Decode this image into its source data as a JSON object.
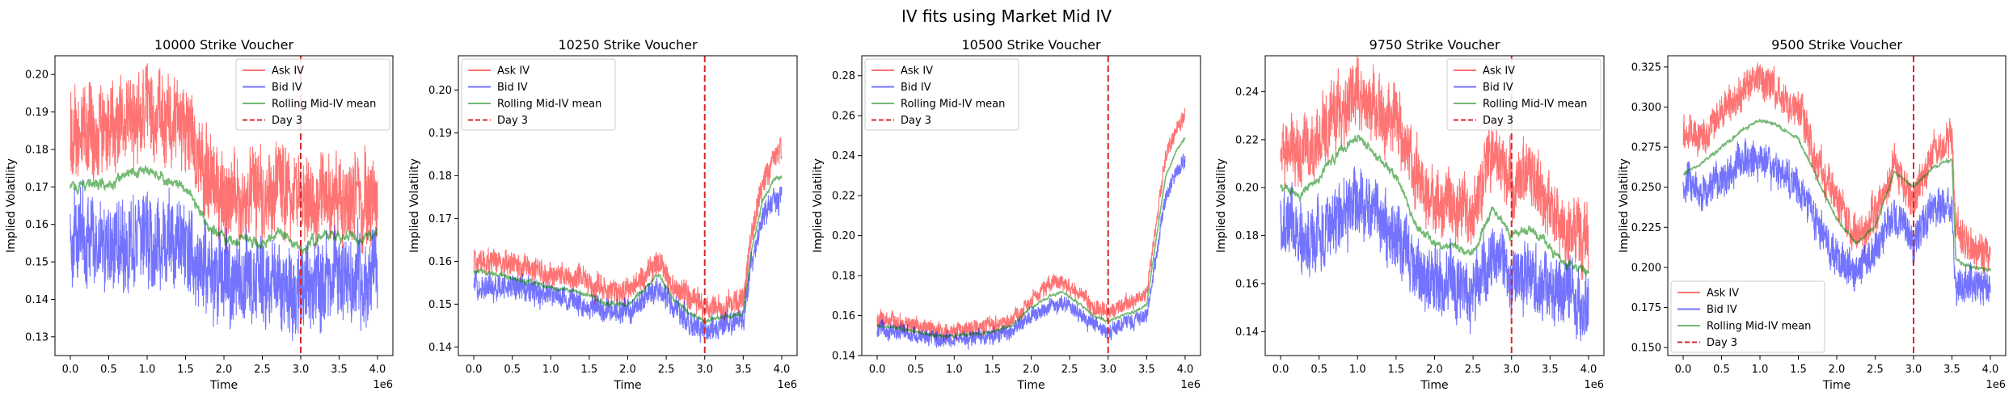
{
  "suptitle": "IV fits using Market Mid IV",
  "colors": {
    "ask": "#ff0000",
    "bid": "#0000ff",
    "mid": "#008000",
    "day": "#d62728"
  },
  "legend_labels": [
    "Ask IV",
    "Bid IV",
    "Rolling Mid-IV mean",
    "Day 3"
  ],
  "chart_data": [
    {
      "type": "line",
      "title": "10000 Strike Voucher",
      "xlabel": "Time",
      "ylabel": "Implied Volatility",
      "x_offset_label": "1e6",
      "xlim": [
        -0.2,
        4.2
      ],
      "ylim": [
        0.125,
        0.205
      ],
      "xticks": [
        "0.0",
        "0.5",
        "1.0",
        "1.5",
        "2.0",
        "2.5",
        "3.0",
        "3.5",
        "4.0"
      ],
      "yticks": [
        "0.13",
        "0.14",
        "0.15",
        "0.16",
        "0.17",
        "0.18",
        "0.19",
        "0.20"
      ],
      "legend_position": "upper right",
      "vline_x": 3.0,
      "grid": false,
      "x": [
        0.0,
        0.25,
        0.5,
        0.75,
        1.0,
        1.25,
        1.5,
        1.75,
        2.0,
        2.25,
        2.5,
        2.75,
        3.0,
        3.25,
        3.5,
        3.75,
        4.0
      ],
      "series": [
        {
          "name": "Ask IV",
          "values": [
            0.183,
            0.186,
            0.185,
            0.189,
            0.19,
            0.188,
            0.186,
            0.172,
            0.168,
            0.168,
            0.167,
            0.171,
            0.163,
            0.167,
            0.167,
            0.166,
            0.166
          ]
        },
        {
          "name": "Bid IV",
          "values": [
            0.158,
            0.156,
            0.155,
            0.155,
            0.156,
            0.155,
            0.154,
            0.148,
            0.145,
            0.145,
            0.144,
            0.143,
            0.142,
            0.146,
            0.147,
            0.146,
            0.15
          ]
        },
        {
          "name": "Rolling Mid-IV mean",
          "values": [
            0.17,
            0.171,
            0.17,
            0.173,
            0.175,
            0.172,
            0.17,
            0.161,
            0.156,
            0.156,
            0.155,
            0.158,
            0.153,
            0.157,
            0.157,
            0.156,
            0.158
          ]
        }
      ]
    },
    {
      "type": "line",
      "title": "10250 Strike Voucher",
      "xlabel": "Time",
      "ylabel": "Implied Volatility",
      "x_offset_label": "1e6",
      "xlim": [
        -0.2,
        4.2
      ],
      "ylim": [
        0.138,
        0.208
      ],
      "xticks": [
        "0.0",
        "0.5",
        "1.0",
        "1.5",
        "2.0",
        "2.5",
        "3.0",
        "3.5",
        "4.0"
      ],
      "yticks": [
        "0.14",
        "0.15",
        "0.16",
        "0.17",
        "0.18",
        "0.19",
        "0.20"
      ],
      "legend_position": "upper left",
      "vline_x": 3.0,
      "grid": false,
      "x": [
        0.0,
        0.25,
        0.5,
        0.75,
        1.0,
        1.25,
        1.5,
        1.75,
        2.0,
        2.25,
        2.4,
        2.6,
        2.8,
        3.0,
        3.25,
        3.5,
        3.6,
        3.75,
        3.9,
        4.0
      ],
      "series": [
        {
          "name": "Ask IV",
          "values": [
            0.161,
            0.16,
            0.159,
            0.158,
            0.157,
            0.156,
            0.155,
            0.153,
            0.153,
            0.157,
            0.16,
            0.154,
            0.151,
            0.149,
            0.149,
            0.151,
            0.166,
            0.178,
            0.184,
            0.186
          ]
        },
        {
          "name": "Bid IV",
          "values": [
            0.155,
            0.154,
            0.154,
            0.153,
            0.152,
            0.151,
            0.15,
            0.148,
            0.148,
            0.152,
            0.154,
            0.149,
            0.146,
            0.144,
            0.145,
            0.146,
            0.159,
            0.17,
            0.174,
            0.175
          ]
        },
        {
          "name": "Rolling Mid-IV mean",
          "values": [
            0.158,
            0.157,
            0.156,
            0.155,
            0.154,
            0.153,
            0.152,
            0.15,
            0.15,
            0.154,
            0.157,
            0.151,
            0.148,
            0.146,
            0.147,
            0.148,
            0.162,
            0.174,
            0.179,
            0.18
          ]
        }
      ]
    },
    {
      "type": "line",
      "title": "10500 Strike Voucher",
      "xlabel": "Time",
      "ylabel": "Implied Volatility",
      "x_offset_label": "1e6",
      "xlim": [
        -0.2,
        4.2
      ],
      "ylim": [
        0.14,
        0.29
      ],
      "xticks": [
        "0.0",
        "0.5",
        "1.0",
        "1.5",
        "2.0",
        "2.5",
        "3.0",
        "3.5",
        "4.0"
      ],
      "yticks": [
        "0.14",
        "0.16",
        "0.18",
        "0.20",
        "0.22",
        "0.24",
        "0.26",
        "0.28"
      ],
      "legend_position": "upper left",
      "vline_x": 3.0,
      "grid": false,
      "x": [
        0.0,
        0.25,
        0.5,
        0.75,
        1.0,
        1.25,
        1.5,
        1.75,
        2.0,
        2.25,
        2.4,
        2.6,
        2.8,
        3.0,
        3.25,
        3.5,
        3.6,
        3.75,
        3.9,
        4.0
      ],
      "series": [
        {
          "name": "Ask IV",
          "values": [
            0.158,
            0.157,
            0.155,
            0.153,
            0.152,
            0.154,
            0.155,
            0.158,
            0.168,
            0.175,
            0.177,
            0.172,
            0.164,
            0.162,
            0.166,
            0.17,
            0.2,
            0.24,
            0.255,
            0.26
          ]
        },
        {
          "name": "Bid IV",
          "values": [
            0.153,
            0.152,
            0.15,
            0.148,
            0.148,
            0.149,
            0.15,
            0.152,
            0.16,
            0.164,
            0.166,
            0.162,
            0.155,
            0.152,
            0.156,
            0.16,
            0.185,
            0.22,
            0.232,
            0.238
          ]
        },
        {
          "name": "Rolling Mid-IV mean",
          "values": [
            0.155,
            0.154,
            0.152,
            0.15,
            0.15,
            0.151,
            0.152,
            0.155,
            0.164,
            0.17,
            0.172,
            0.167,
            0.16,
            0.157,
            0.161,
            0.165,
            0.192,
            0.23,
            0.243,
            0.249
          ]
        }
      ]
    },
    {
      "type": "line",
      "title": "9750 Strike Voucher",
      "xlabel": "Time",
      "ylabel": "Implied Volatility",
      "x_offset_label": "1e6",
      "xlim": [
        -0.2,
        4.2
      ],
      "ylim": [
        0.13,
        0.255
      ],
      "xticks": [
        "0.0",
        "0.5",
        "1.0",
        "1.5",
        "2.0",
        "2.5",
        "3.0",
        "3.5",
        "4.0"
      ],
      "yticks": [
        "0.14",
        "0.16",
        "0.18",
        "0.20",
        "0.22",
        "0.24"
      ],
      "legend_position": "upper right",
      "vline_x": 3.0,
      "grid": false,
      "x": [
        0.0,
        0.25,
        0.5,
        0.75,
        1.0,
        1.25,
        1.5,
        1.75,
        2.0,
        2.25,
        2.5,
        2.75,
        3.0,
        3.25,
        3.5,
        3.75,
        4.0
      ],
      "series": [
        {
          "name": "Ask IV",
          "values": [
            0.215,
            0.212,
            0.222,
            0.232,
            0.24,
            0.232,
            0.228,
            0.205,
            0.195,
            0.192,
            0.19,
            0.215,
            0.2,
            0.205,
            0.192,
            0.18,
            0.178
          ]
        },
        {
          "name": "Bid IV",
          "values": [
            0.185,
            0.18,
            0.18,
            0.188,
            0.195,
            0.19,
            0.18,
            0.165,
            0.158,
            0.16,
            0.155,
            0.17,
            0.16,
            0.162,
            0.158,
            0.155,
            0.152
          ]
        },
        {
          "name": "Rolling Mid-IV mean",
          "values": [
            0.2,
            0.196,
            0.205,
            0.215,
            0.222,
            0.213,
            0.205,
            0.185,
            0.176,
            0.175,
            0.172,
            0.192,
            0.18,
            0.183,
            0.175,
            0.167,
            0.165
          ]
        }
      ]
    },
    {
      "type": "line",
      "title": "9500 Strike Voucher",
      "xlabel": "Time",
      "ylabel": "Implied Volatility",
      "x_offset_label": "1e6",
      "xlim": [
        -0.2,
        4.2
      ],
      "ylim": [
        0.145,
        0.332
      ],
      "xticks": [
        "0.0",
        "0.5",
        "1.0",
        "1.5",
        "2.0",
        "2.5",
        "3.0",
        "3.5",
        "4.0"
      ],
      "yticks": [
        "0.150",
        "0.175",
        "0.200",
        "0.225",
        "0.250",
        "0.275",
        "0.300",
        "0.325"
      ],
      "legend_position": "lower left",
      "vline_x": 3.0,
      "grid": false,
      "x": [
        0.0,
        0.25,
        0.5,
        0.75,
        1.0,
        1.25,
        1.5,
        1.75,
        2.0,
        2.25,
        2.5,
        2.75,
        3.0,
        3.25,
        3.5,
        3.55,
        3.75,
        4.0
      ],
      "series": [
        {
          "name": "Ask IV",
          "values": [
            0.285,
            0.28,
            0.295,
            0.31,
            0.318,
            0.308,
            0.3,
            0.265,
            0.24,
            0.22,
            0.23,
            0.265,
            0.24,
            0.272,
            0.282,
            0.225,
            0.212,
            0.208
          ]
        },
        {
          "name": "Bid IV",
          "values": [
            0.255,
            0.245,
            0.255,
            0.265,
            0.268,
            0.26,
            0.252,
            0.225,
            0.205,
            0.2,
            0.21,
            0.235,
            0.215,
            0.238,
            0.24,
            0.185,
            0.19,
            0.19
          ]
        },
        {
          "name": "Rolling Mid-IV mean",
          "values": [
            0.258,
            0.265,
            0.275,
            0.285,
            0.292,
            0.288,
            0.28,
            0.255,
            0.23,
            0.215,
            0.225,
            0.26,
            0.25,
            0.262,
            0.268,
            0.205,
            0.2,
            0.198
          ]
        }
      ]
    }
  ]
}
